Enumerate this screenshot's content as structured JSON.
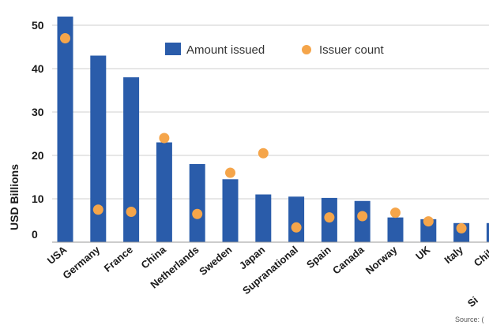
{
  "chart_data": {
    "type": "bar",
    "categories": [
      "USA",
      "Germany",
      "France",
      "China",
      "Netherlands",
      "Sweden",
      "Japan",
      "Supranational",
      "Spain",
      "Canada",
      "Norway",
      "UK",
      "Italy",
      "Chile"
    ],
    "series": [
      {
        "name": "Amount issued",
        "kind": "bar",
        "color": "#2a5caa",
        "values": [
          52,
          43,
          38,
          23,
          18,
          14.5,
          11,
          10.5,
          10.2,
          9.5,
          5.7,
          5.3,
          4.4,
          4.4
        ]
      },
      {
        "name": "Issuer count",
        "kind": "scatter",
        "color": "#f5a54a",
        "values": [
          47,
          7.5,
          7,
          24,
          6.5,
          16,
          20.5,
          3.4,
          5.7,
          6,
          6.8,
          4.8,
          3.2,
          null
        ]
      }
    ],
    "yticks": [
      0,
      10,
      20,
      30,
      40,
      50
    ],
    "ylim": [
      0,
      52
    ],
    "ylabel": "USD Billions",
    "legend_position": "top-center",
    "grid": true,
    "source_fragment": "Source: (",
    "clipped_label_fragment": "Si"
  }
}
